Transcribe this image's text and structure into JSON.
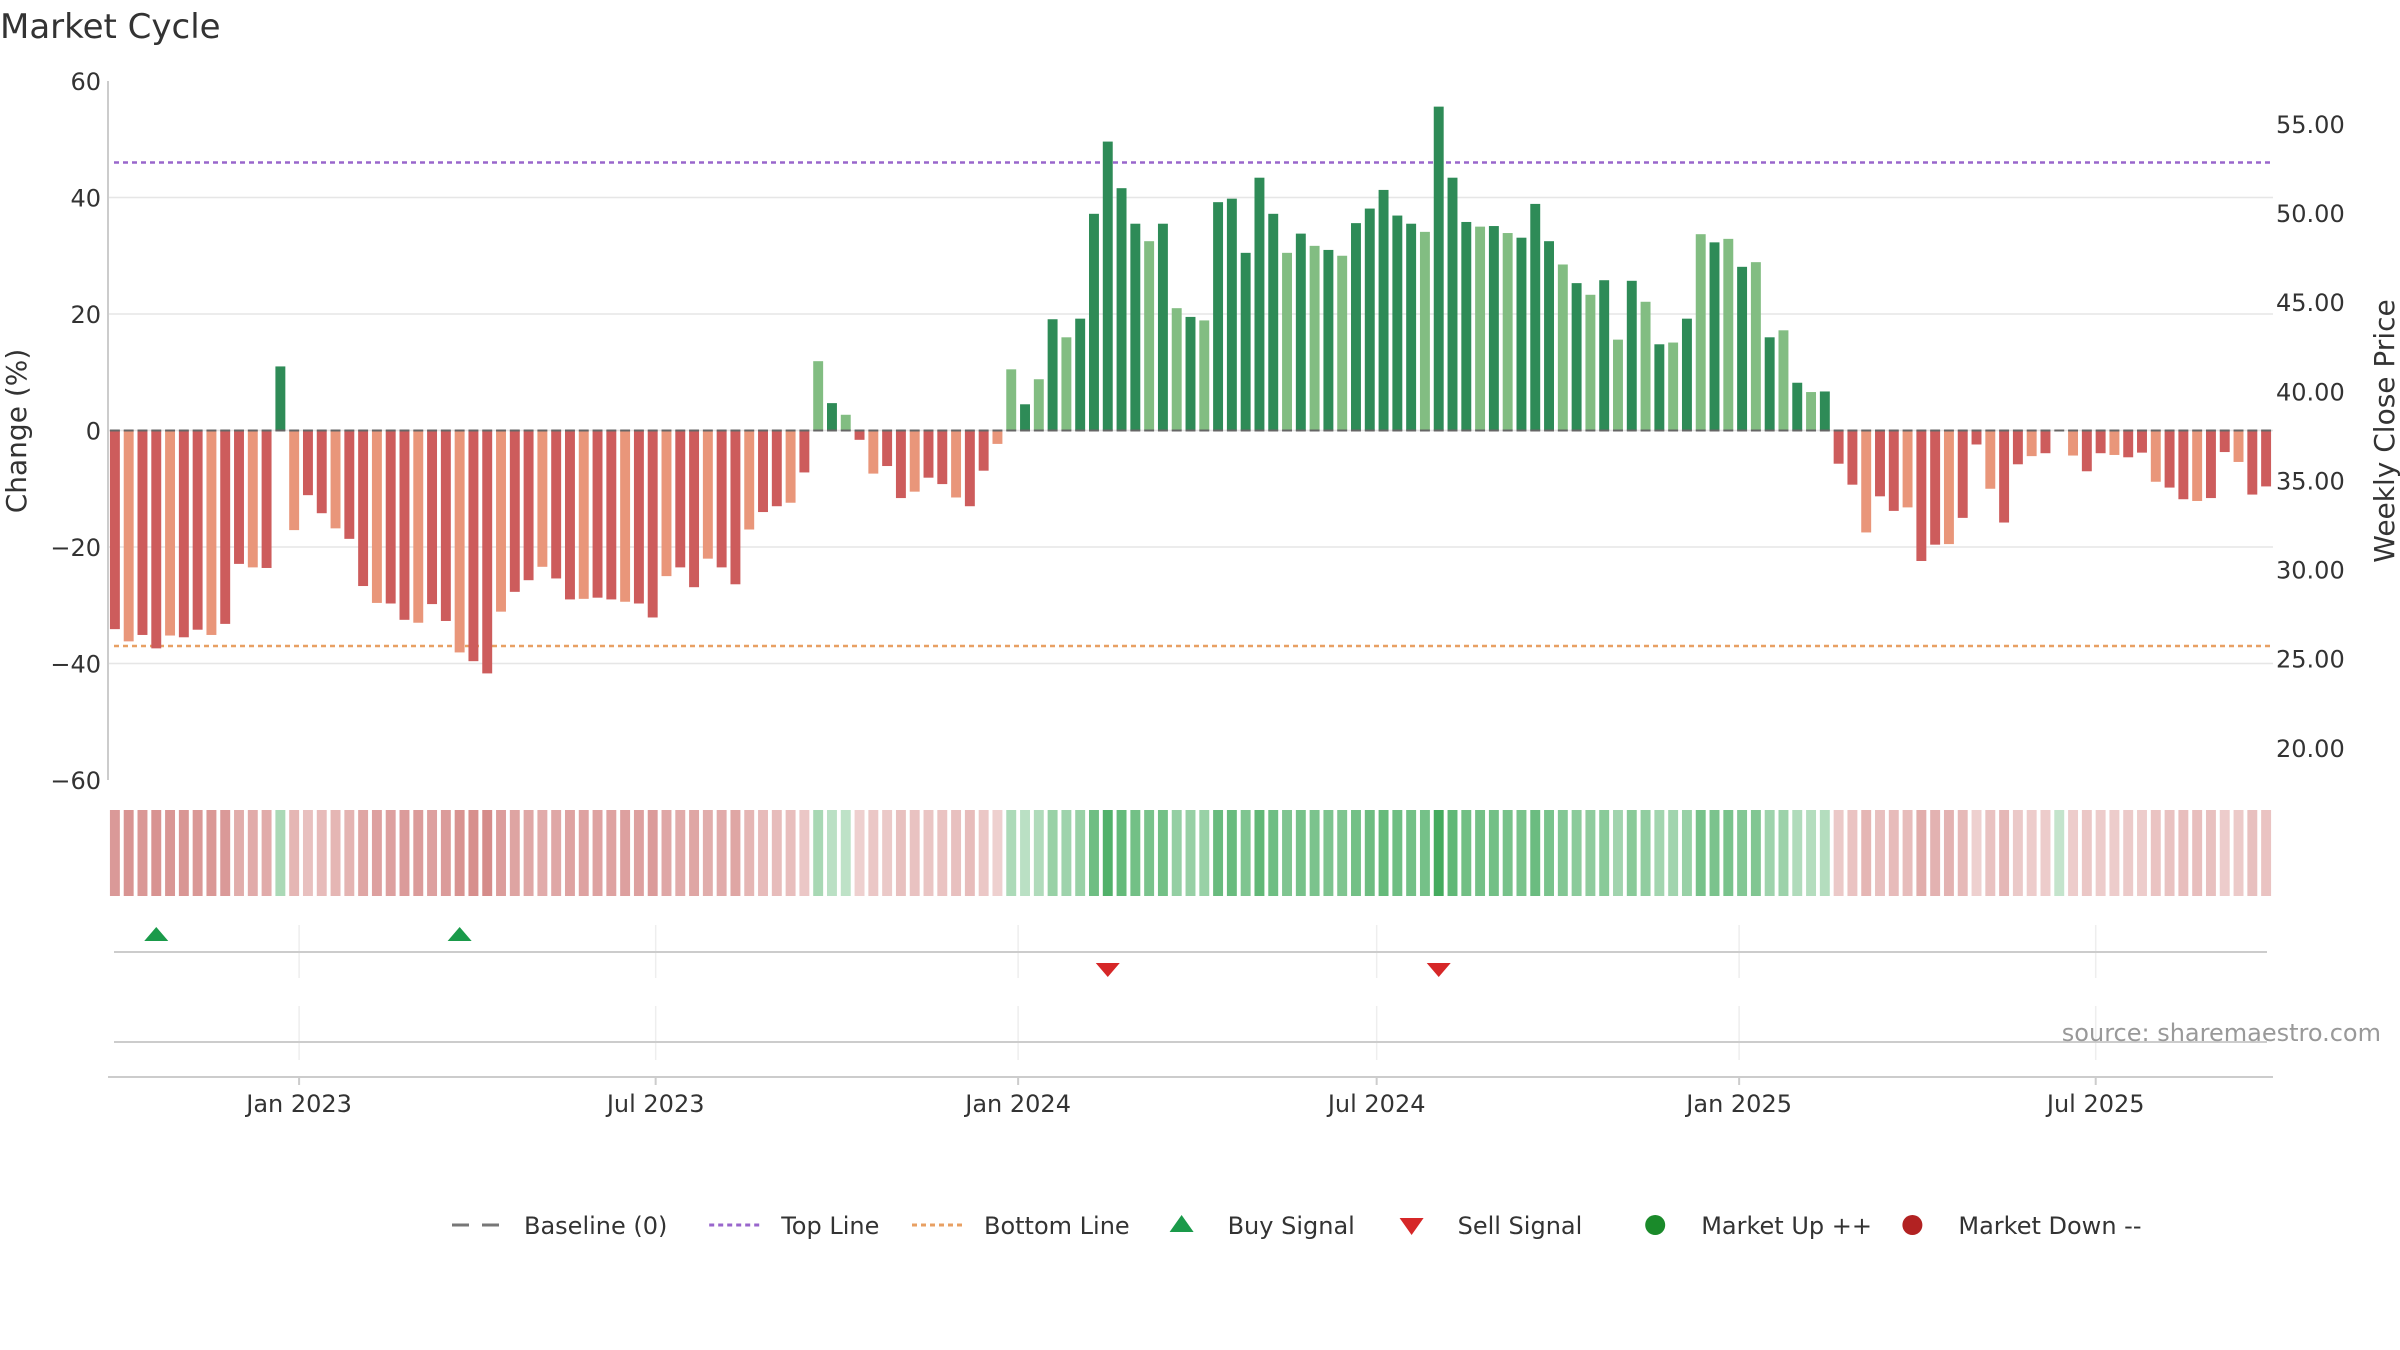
{
  "chart_data": {
    "type": "bar",
    "title": "Market Cycle",
    "ylabel_left": "Change (%)",
    "ylabel_right": "Weekly Close Price",
    "ylim_left": [
      -60,
      60
    ],
    "yticks_left": [
      60,
      40,
      20,
      0,
      -20,
      -40,
      -60
    ],
    "ytick_labels_left": [
      "60",
      "40",
      "20",
      "0",
      "−20",
      "−40",
      "−60"
    ],
    "ylim_right": [
      18.2,
      57.4
    ],
    "yticks_right": [
      55,
      50,
      45,
      40,
      35,
      30,
      25,
      20
    ],
    "ytick_labels_right": [
      "55.00",
      "50.00",
      "45.00",
      "40.00",
      "35.00",
      "30.00",
      "25.00",
      "20.00"
    ],
    "x_start": "2022-09-26",
    "x_end": "2025-09-29",
    "x_ticks": [
      {
        "date": "2023-01-01",
        "label": "Jan 2023"
      },
      {
        "date": "2023-07-01",
        "label": "Jul 2023"
      },
      {
        "date": "2024-01-01",
        "label": "Jan 2024"
      },
      {
        "date": "2024-07-01",
        "label": "Jul 2024"
      },
      {
        "date": "2025-01-01",
        "label": "Jan 2025"
      },
      {
        "date": "2025-07-01",
        "label": "Jul 2025"
      }
    ],
    "top_line": 46,
    "bottom_line": -37,
    "grid": true,
    "values": [
      -34.1,
      -36.2,
      -35.1,
      -37.4,
      -35.2,
      -35.5,
      -34.2,
      -35.1,
      -33.2,
      -22.9,
      -23.5,
      -23.6,
      11,
      -17.1,
      -11.1,
      -14.2,
      -16.8,
      -18.6,
      -26.7,
      -29.6,
      -29.7,
      -32.5,
      -33,
      -29.8,
      -32.7,
      -38.1,
      -39.6,
      -41.7,
      -31.1,
      -27.7,
      -25.7,
      -23.4,
      -25.4,
      -29,
      -28.9,
      -28.7,
      -29,
      -29.4,
      -29.7,
      -32.1,
      -25,
      -23.5,
      -26.9,
      -22,
      -23.5,
      -26.4,
      -17,
      -14,
      -13,
      -12.4,
      -7.2,
      11.9,
      4.7,
      2.7,
      -1.6,
      -7.4,
      -6.1,
      -11.6,
      -10.5,
      -8.1,
      -9.2,
      -11.5,
      -13,
      -6.9,
      -2.3,
      10.5,
      4.5,
      8.8,
      19.1,
      16,
      19.2,
      37.2,
      49.6,
      41.6,
      35.5,
      32.5,
      35.5,
      21,
      19.5,
      18.9,
      39.2,
      39.8,
      30.5,
      43.4,
      37.2,
      30.5,
      33.8,
      31.7,
      31,
      30,
      35.6,
      38.1,
      41.3,
      36.9,
      35.5,
      34.1,
      55.6,
      43.4,
      35.8,
      35,
      35.1,
      33.9,
      33.1,
      38.9,
      32.5,
      28.5,
      25.3,
      23.3,
      25.8,
      15.6,
      25.7,
      22.1,
      14.8,
      15.1,
      19.2,
      33.7,
      32.3,
      32.9,
      28.1,
      28.9,
      16,
      17.2,
      8.2,
      6.6,
      6.7,
      -5.7,
      -9.3,
      -17.5,
      -11.3,
      -13.8,
      -13.2,
      -22.4,
      -19.6,
      -19.5,
      -15,
      -2.4,
      -10,
      -15.8,
      -5.8,
      -4.4,
      -3.9,
      0,
      -4.3,
      -7,
      -3.9,
      -4.2,
      -4.6,
      -3.8,
      -8.8,
      -9.8,
      -11.8,
      -12.1,
      -11.6,
      -3.7,
      -5.4,
      -11,
      -9.6
    ],
    "signals": [
      {
        "type": "buy",
        "index": 3
      },
      {
        "type": "buy",
        "index": 25
      },
      {
        "type": "sell",
        "index": 72
      },
      {
        "type": "sell",
        "index": 96
      }
    ],
    "source": "source: sharemaestro.com",
    "legend": [
      {
        "label": "Baseline (0)",
        "kind": "dash",
        "color": "#777777"
      },
      {
        "label": "Top Line",
        "kind": "dot",
        "color": "#9966cc"
      },
      {
        "label": "Bottom Line",
        "kind": "dot",
        "color": "#e8a063"
      },
      {
        "label": "Buy Signal",
        "kind": "tri-up",
        "color": "#1a9a4a"
      },
      {
        "label": "Sell Signal",
        "kind": "tri-down",
        "color": "#d62728"
      },
      {
        "label": "Market Up ++",
        "kind": "circle",
        "color": "#1a8a2a"
      },
      {
        "label": "Market Down --",
        "kind": "circle",
        "color": "#b22222"
      }
    ],
    "colors": {
      "pos_strong": "#2e8b57",
      "pos_weak": "#82bd82",
      "neg_strong": "#cd5c5c",
      "neg_weak": "#e9967a",
      "top_line": "#9966cc",
      "bottom_line": "#e8a063",
      "buy": "#1a9a4a",
      "sell": "#d62728"
    }
  }
}
